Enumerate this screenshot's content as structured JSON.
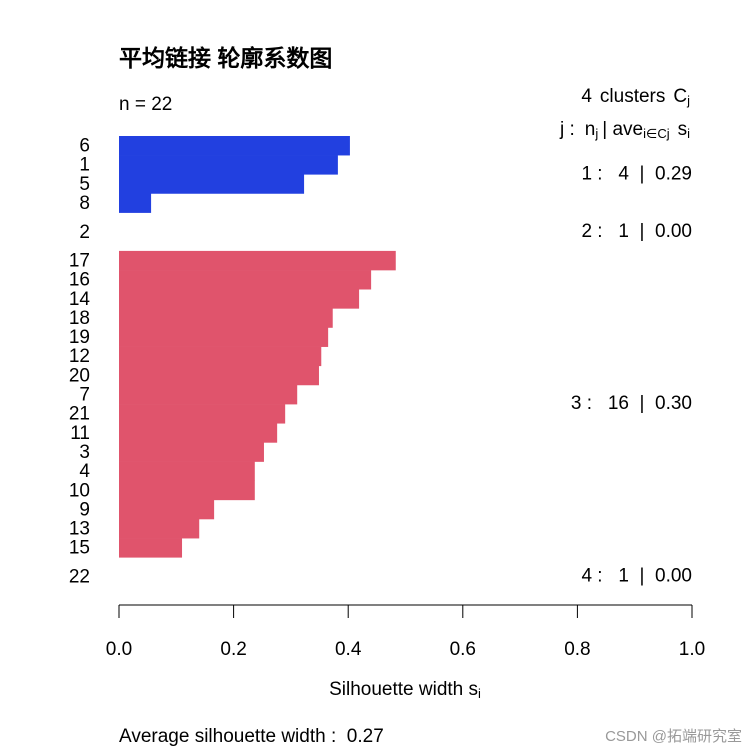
{
  "chart_data": {
    "type": "silhouette",
    "title": "平均链接 轮廓系数图",
    "n_label": "n = 22",
    "header": {
      "count": "4",
      "word": "clusters",
      "symbol": "C",
      "symbol_sub": "j",
      "col_j": "j :",
      "col_n": "n",
      "col_n_sub": "j",
      "col_sep": "| ave",
      "col_ave_sub": "i∈Cj",
      "col_s": "s",
      "col_s_sub": "i"
    },
    "clusters": [
      {
        "color": "#2240e0",
        "summary": "1 :   4  |  0.29",
        "categories": [
          "6",
          "1",
          "5",
          "8"
        ],
        "values": [
          0.403,
          0.382,
          0.323,
          0.056
        ]
      },
      {
        "color": "#2240e0",
        "summary": "2 :   1  |  0.00",
        "categories": [
          "2"
        ],
        "values": [
          0
        ]
      },
      {
        "color": "#e0546c",
        "summary": "3 :   16  |  0.30",
        "categories": [
          "17",
          "16",
          "14",
          "18",
          "19",
          "12",
          "20",
          "7",
          "21",
          "11",
          "3",
          "4",
          "10",
          "9",
          "13",
          "15"
        ],
        "values": [
          0.483,
          0.44,
          0.419,
          0.373,
          0.365,
          0.353,
          0.349,
          0.311,
          0.29,
          0.276,
          0.253,
          0.237,
          0.237,
          0.166,
          0.14,
          0.11
        ]
      },
      {
        "color": "#e0546c",
        "summary": "4 :   1  |  0.00",
        "categories": [
          "22"
        ],
        "values": [
          0
        ]
      }
    ],
    "xlim": [
      0,
      1
    ],
    "xticks": [
      {
        "value": 0,
        "label": "0.0"
      },
      0.2,
      0.4,
      0.6,
      0.8,
      {
        "value": 1,
        "label": "1.0"
      }
    ],
    "xlabel": "Silhouette width s",
    "xlabel_sub": "i",
    "footer": "Average silhouette width :  0.27",
    "watermark": "CSDN @拓端研究室"
  }
}
